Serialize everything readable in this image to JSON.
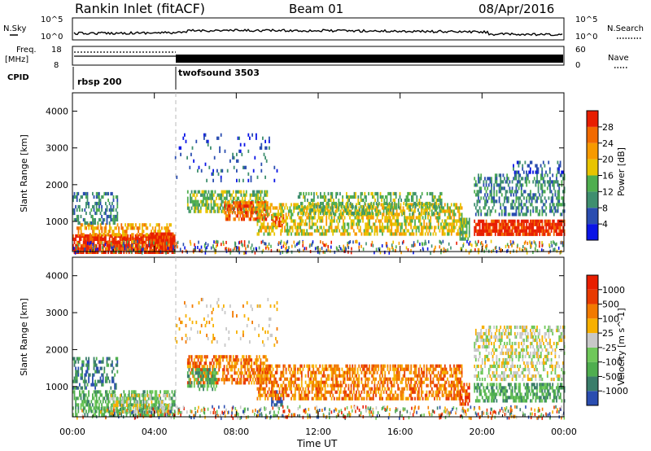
{
  "header": {
    "station": "Rankin Inlet (fitACF)",
    "beam": "Beam 01",
    "date": "08/Apr/2016"
  },
  "top_panels": {
    "nsky_label": "N.Sky",
    "nsky_ticks": [
      "10^5",
      "10^0"
    ],
    "nsearch_label": "N.Search",
    "nsearch_ticks": [
      "10^5",
      "10^0"
    ],
    "freq_label_line1": "Freq.",
    "freq_label_line2": "[MHz]",
    "freq_ticks": [
      "18",
      "8"
    ],
    "nave_label": "Nave",
    "nave_ticks": [
      "60",
      "0"
    ],
    "cpid_label": "CPID",
    "cpid_segments": [
      {
        "name": "rbsp 200",
        "start_hour": 0
      },
      {
        "name": "twofsound 3503",
        "start_hour": 5
      }
    ]
  },
  "chart_data": [
    {
      "type": "heatmap",
      "title": "Power",
      "ylabel": "Slant Range [km]",
      "xlabel": "Time UT",
      "x_ticks": [
        "00:00",
        "04:00",
        "08:00",
        "12:00",
        "16:00",
        "20:00",
        "00:00"
      ],
      "y_ticks": [
        "1000",
        "2000",
        "3000",
        "4000"
      ],
      "xlim_hours": [
        0,
        24
      ],
      "ylim_km": [
        180,
        4500
      ],
      "colorbar": {
        "label": "Power [dB]",
        "ticks": [
          "4",
          "8",
          "12",
          "16",
          "20",
          "24",
          "28"
        ],
        "colors": [
          "#0a14e6",
          "#2a4db0",
          "#3f8f6f",
          "#4fae4f",
          "#e8c400",
          "#f79a00",
          "#f26a00",
          "#e81e00"
        ]
      },
      "blobs": [
        {
          "t0": 0.0,
          "t1": 5.0,
          "r0": 200,
          "r1": 650,
          "c": 7,
          "d": 0.85
        },
        {
          "t0": 0.2,
          "t1": 4.8,
          "r0": 600,
          "r1": 950,
          "c": 5,
          "d": 0.55
        },
        {
          "t0": 0.0,
          "t1": 2.2,
          "r0": 950,
          "r1": 1800,
          "c": 2,
          "d": 0.45
        },
        {
          "t0": 3.8,
          "t1": 5.0,
          "r0": 200,
          "r1": 700,
          "c": 7,
          "d": 0.9
        },
        {
          "t0": 5.6,
          "t1": 9.5,
          "r0": 1300,
          "r1": 1850,
          "c": 3,
          "d": 0.6
        },
        {
          "t0": 7.4,
          "t1": 9.5,
          "r0": 1050,
          "r1": 1550,
          "c": 6,
          "d": 0.75
        },
        {
          "t0": 9.7,
          "t1": 10.3,
          "r0": 900,
          "r1": 1200,
          "c": 7,
          "d": 0.7
        },
        {
          "t0": 9.0,
          "t1": 19.0,
          "r0": 700,
          "r1": 1500,
          "c": 4,
          "d": 0.55
        },
        {
          "t0": 11.0,
          "t1": 18.0,
          "r0": 1200,
          "r1": 1800,
          "c": 3,
          "d": 0.45
        },
        {
          "t0": 18.9,
          "t1": 19.4,
          "r0": 500,
          "r1": 1100,
          "c": 3,
          "d": 0.6
        },
        {
          "t0": 19.6,
          "t1": 24.0,
          "r0": 650,
          "r1": 1050,
          "c": 7,
          "d": 0.85
        },
        {
          "t0": 19.6,
          "t1": 24.0,
          "r0": 1200,
          "r1": 2300,
          "c": 2,
          "d": 0.45
        },
        {
          "t0": 21.5,
          "t1": 24.0,
          "r0": 2300,
          "r1": 2650,
          "c": 1,
          "d": 0.35
        },
        {
          "t0": 5.0,
          "t1": 10.0,
          "r0": 2100,
          "r1": 3400,
          "c": 1,
          "d": 0.08
        }
      ]
    },
    {
      "type": "heatmap",
      "title": "Velocity",
      "ylabel": "Slant Range [km]",
      "xlabel": "Time UT",
      "x_ticks": [
        "00:00",
        "04:00",
        "08:00",
        "12:00",
        "16:00",
        "20:00",
        "00:00"
      ],
      "y_ticks": [
        "1000",
        "2000",
        "3000",
        "4000"
      ],
      "xlim_hours": [
        0,
        24
      ],
      "ylim_km": [
        180,
        4500
      ],
      "colorbar": {
        "label": "Velocity [m s^-1]",
        "ticks": [
          "1000",
          "500",
          "100",
          "25",
          "-25",
          "-100",
          "-500",
          "-1000"
        ],
        "colors": [
          "#2a4db0",
          "#3a7d6a",
          "#4fae4f",
          "#6fc85a",
          "#c8c8c8",
          "#f7b000",
          "#f27a00",
          "#e83a00",
          "#e81e00"
        ]
      },
      "blobs": [
        {
          "t0": 0.0,
          "t1": 5.0,
          "r0": 200,
          "r1": 900,
          "c": 2,
          "d": 0.55
        },
        {
          "t0": 1.8,
          "t1": 4.8,
          "r0": 300,
          "r1": 800,
          "c": 4,
          "d": 0.45
        },
        {
          "t0": 0.0,
          "t1": 2.2,
          "r0": 950,
          "r1": 1800,
          "c": 1,
          "d": 0.45
        },
        {
          "t0": 5.6,
          "t1": 9.5,
          "r0": 1100,
          "r1": 1850,
          "c": 6,
          "d": 0.6
        },
        {
          "t0": 5.6,
          "t1": 7.0,
          "r0": 900,
          "r1": 1500,
          "c": 2,
          "d": 0.5
        },
        {
          "t0": 9.7,
          "t1": 10.3,
          "r0": 500,
          "r1": 900,
          "c": 0,
          "d": 0.6
        },
        {
          "t0": 9.0,
          "t1": 19.0,
          "r0": 700,
          "r1": 1600,
          "c": 6,
          "d": 0.6
        },
        {
          "t0": 18.9,
          "t1": 19.4,
          "r0": 500,
          "r1": 1100,
          "c": 7,
          "d": 0.6
        },
        {
          "t0": 19.6,
          "t1": 24.0,
          "r0": 600,
          "r1": 1100,
          "c": 2,
          "d": 0.6
        },
        {
          "t0": 19.6,
          "t1": 24.0,
          "r0": 1200,
          "r1": 2650,
          "c": 4,
          "d": 0.45
        },
        {
          "t0": 5.0,
          "t1": 10.0,
          "r0": 2100,
          "r1": 3400,
          "c": 5,
          "d": 0.07
        }
      ]
    }
  ]
}
